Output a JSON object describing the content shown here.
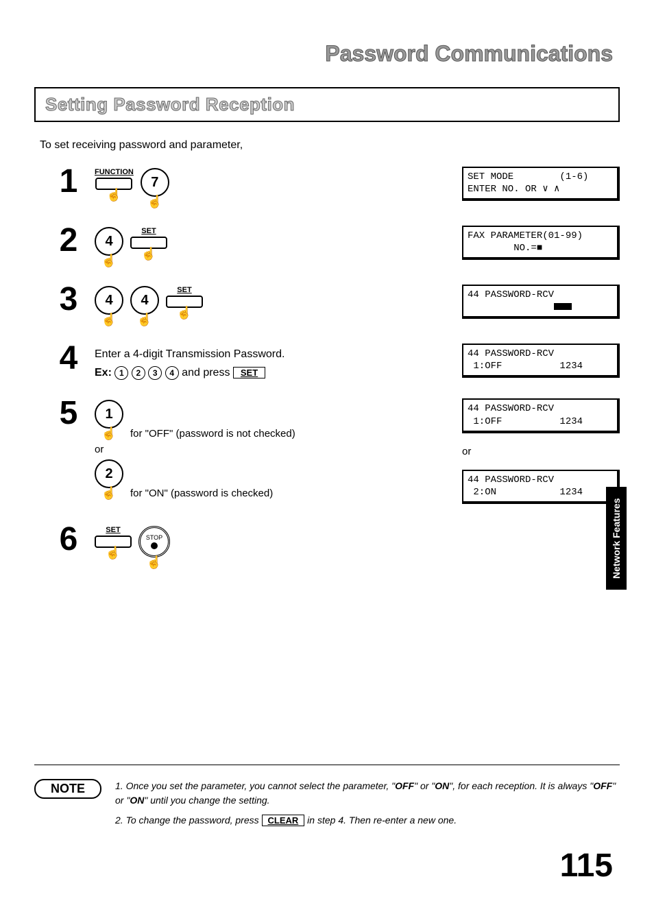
{
  "page": {
    "title": "Password Communications",
    "section": "Setting Password Reception",
    "intro": "To set receiving password and parameter,",
    "sideTab": "Network Features",
    "pageNumber": "115"
  },
  "buttons": {
    "function": "FUNCTION",
    "set": "SET",
    "stop": "STOP",
    "clear": "CLEAR"
  },
  "keys": {
    "k7": "7",
    "k4": "4",
    "k1": "1",
    "k2": "2"
  },
  "steps": {
    "s1": {
      "num": "1"
    },
    "s2": {
      "num": "2"
    },
    "s3": {
      "num": "3"
    },
    "s4": {
      "num": "4",
      "line1": "Enter a 4-digit Transmission Password.",
      "exLabel": "Ex:",
      "d1": "1",
      "d2": "2",
      "d3": "3",
      "d4": "4",
      "andPress": " and press "
    },
    "s5": {
      "num": "5",
      "offCaption": "for \"OFF\" (password is not checked)",
      "or": "or",
      "onCaption": "for \"ON\" (password is checked)"
    },
    "s6": {
      "num": "6"
    }
  },
  "lcd": {
    "l1a": "SET MODE        (1-6)",
    "l1b": "ENTER NO. OR ∨ ∧",
    "l2a": "FAX PARAMETER(01-99)",
    "l2b": "        NO.=■",
    "l3a": "44 PASSWORD-RCV",
    "l4a": "44 PASSWORD-RCV",
    "l4b": " 1:OFF          1234",
    "l5a": "44 PASSWORD-RCV",
    "l5b": " 1:OFF          1234",
    "l5or": "or",
    "l5c": "44 PASSWORD-RCV",
    "l5d": " 2:ON           1234"
  },
  "notes": {
    "label": "NOTE",
    "n1pre": "1. Once you set the parameter, you cannot select the parameter, \"",
    "n1off": "OFF",
    "n1mid": "\" or \"",
    "n1on": "ON",
    "n1post": "\", for each reception. It is always \"",
    "n1off2": "OFF",
    "n1mid2": "\" or \"",
    "n1on2": "ON",
    "n1end": "\" until you change the setting.",
    "n2pre": "2. To change the password, press ",
    "n2post": " in step 4. Then re-enter a new one."
  }
}
